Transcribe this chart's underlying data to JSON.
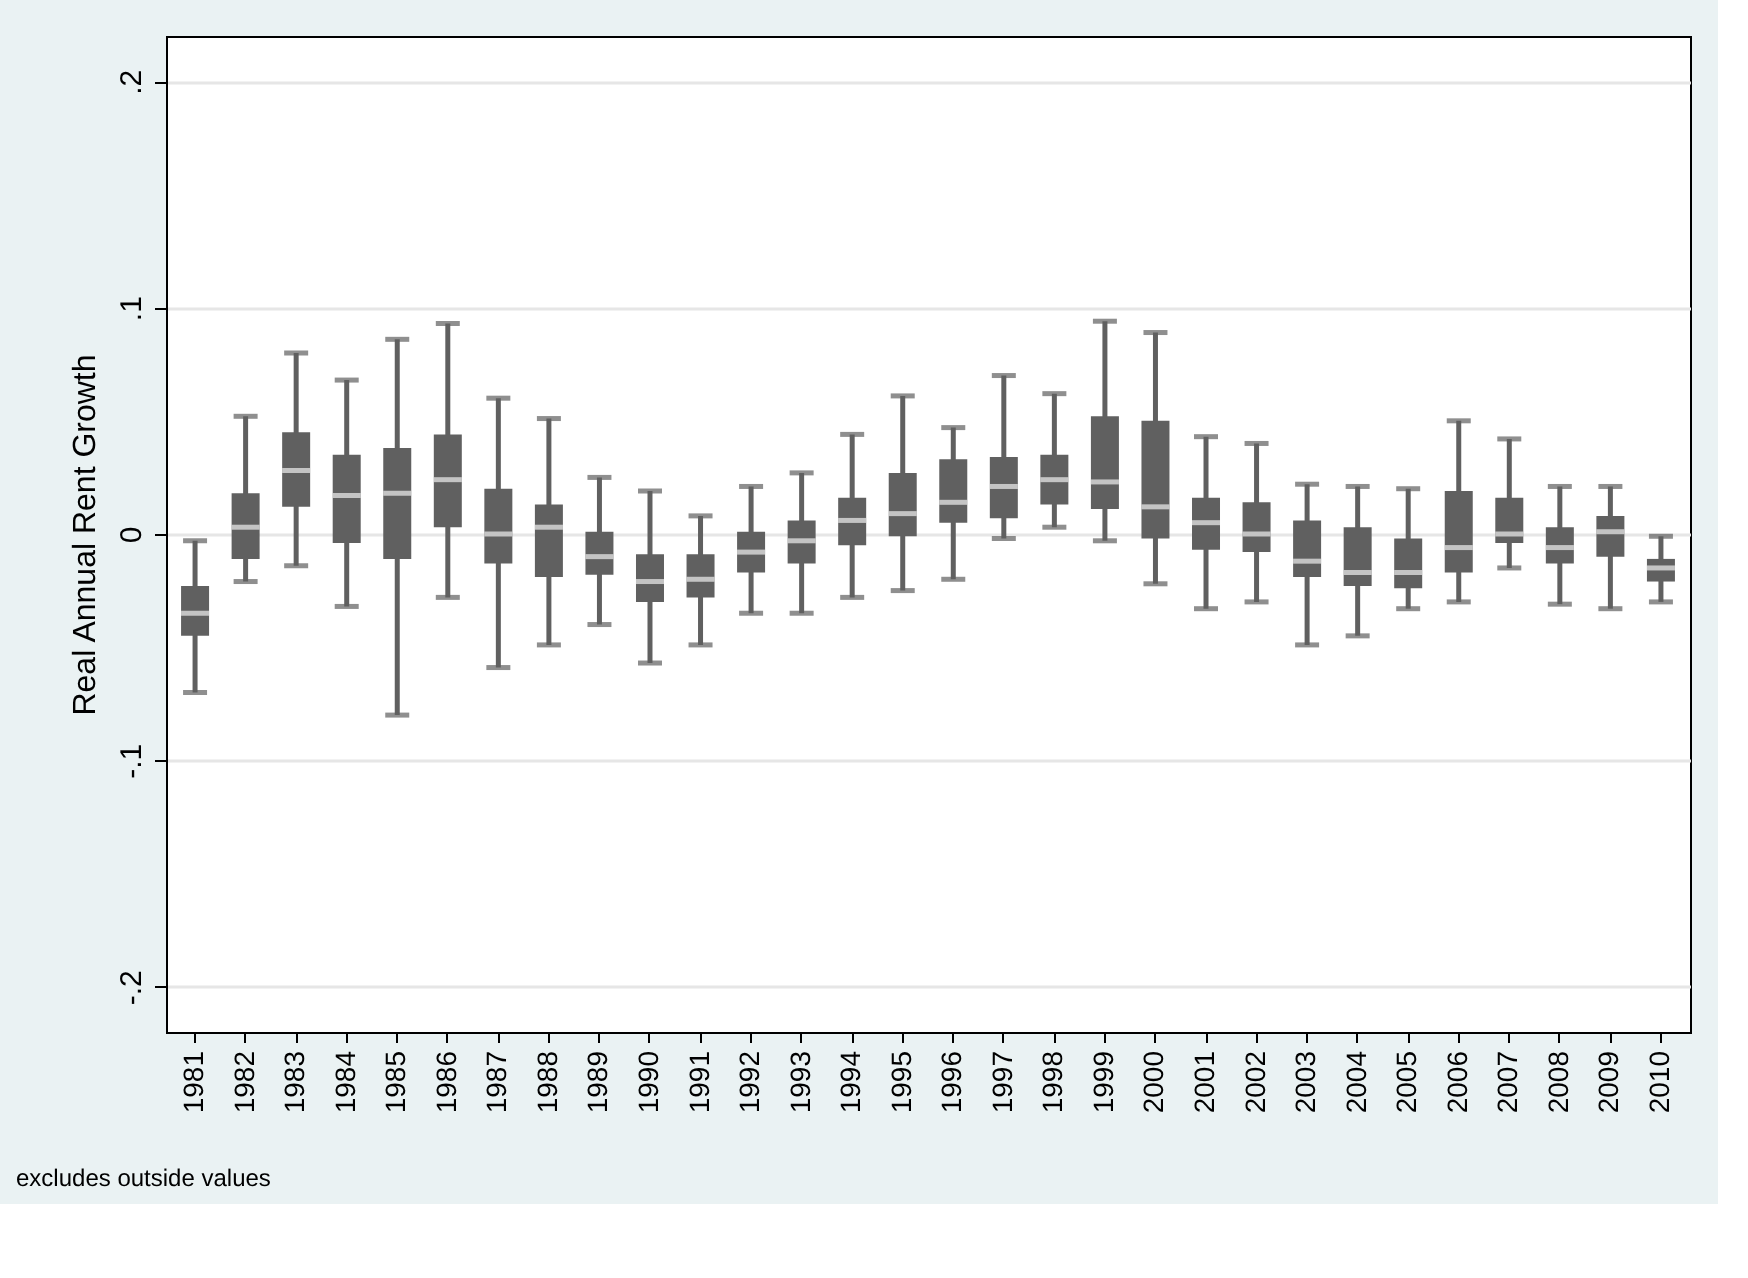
{
  "chart_data": {
    "type": "box",
    "ylabel": "Real Annual Rent Growth",
    "annotations": [
      "excludes outside values"
    ],
    "categories": [
      "1981",
      "1982",
      "1983",
      "1984",
      "1985",
      "1986",
      "1987",
      "1988",
      "1989",
      "1990",
      "1991",
      "1992",
      "1993",
      "1994",
      "1995",
      "1996",
      "1997",
      "1998",
      "1999",
      "2000",
      "2001",
      "2002",
      "2003",
      "2004",
      "2005",
      "2006",
      "2007",
      "2008",
      "2009",
      "2010"
    ],
    "color": "#606060",
    "boxes": [
      {
        "low": -0.07,
        "q1": -0.045,
        "median": -0.035,
        "q3": -0.023,
        "high": -0.003
      },
      {
        "low": -0.021,
        "q1": -0.011,
        "median": 0.003,
        "q3": 0.018,
        "high": 0.052
      },
      {
        "low": -0.014,
        "q1": 0.012,
        "median": 0.028,
        "q3": 0.045,
        "high": 0.08
      },
      {
        "low": -0.032,
        "q1": -0.004,
        "median": 0.017,
        "q3": 0.035,
        "high": 0.068
      },
      {
        "low": -0.08,
        "q1": -0.011,
        "median": 0.018,
        "q3": 0.038,
        "high": 0.086
      },
      {
        "low": -0.028,
        "q1": 0.003,
        "median": 0.024,
        "q3": 0.044,
        "high": 0.093
      },
      {
        "low": -0.059,
        "q1": -0.013,
        "median": 0.0,
        "q3": 0.02,
        "high": 0.06
      },
      {
        "low": -0.049,
        "q1": -0.019,
        "median": 0.003,
        "q3": 0.013,
        "high": 0.051
      },
      {
        "low": -0.04,
        "q1": -0.018,
        "median": -0.01,
        "q3": 0.001,
        "high": 0.025
      },
      {
        "low": -0.057,
        "q1": -0.03,
        "median": -0.021,
        "q3": -0.009,
        "high": 0.019
      },
      {
        "low": -0.049,
        "q1": -0.028,
        "median": -0.02,
        "q3": -0.009,
        "high": 0.008
      },
      {
        "low": -0.035,
        "q1": -0.017,
        "median": -0.008,
        "q3": 0.001,
        "high": 0.021
      },
      {
        "low": -0.035,
        "q1": -0.013,
        "median": -0.003,
        "q3": 0.006,
        "high": 0.027
      },
      {
        "low": -0.028,
        "q1": -0.005,
        "median": 0.006,
        "q3": 0.016,
        "high": 0.044
      },
      {
        "low": -0.025,
        "q1": -0.001,
        "median": 0.009,
        "q3": 0.027,
        "high": 0.061
      },
      {
        "low": -0.02,
        "q1": 0.005,
        "median": 0.014,
        "q3": 0.033,
        "high": 0.047
      },
      {
        "low": -0.002,
        "q1": 0.007,
        "median": 0.021,
        "q3": 0.034,
        "high": 0.07
      },
      {
        "low": 0.003,
        "q1": 0.013,
        "median": 0.024,
        "q3": 0.035,
        "high": 0.062
      },
      {
        "low": -0.003,
        "q1": 0.011,
        "median": 0.023,
        "q3": 0.052,
        "high": 0.094
      },
      {
        "low": -0.022,
        "q1": -0.002,
        "median": 0.012,
        "q3": 0.05,
        "high": 0.089
      },
      {
        "low": -0.033,
        "q1": -0.007,
        "median": 0.005,
        "q3": 0.016,
        "high": 0.043
      },
      {
        "low": -0.03,
        "q1": -0.008,
        "median": 0.0,
        "q3": 0.014,
        "high": 0.04
      },
      {
        "low": -0.049,
        "q1": -0.019,
        "median": -0.012,
        "q3": 0.006,
        "high": 0.022
      },
      {
        "low": -0.045,
        "q1": -0.023,
        "median": -0.017,
        "q3": 0.003,
        "high": 0.021
      },
      {
        "low": -0.033,
        "q1": -0.024,
        "median": -0.017,
        "q3": -0.002,
        "high": 0.02
      },
      {
        "low": -0.03,
        "q1": -0.017,
        "median": -0.006,
        "q3": 0.019,
        "high": 0.05
      },
      {
        "low": -0.015,
        "q1": -0.004,
        "median": 0.0,
        "q3": 0.016,
        "high": 0.042
      },
      {
        "low": -0.031,
        "q1": -0.013,
        "median": -0.006,
        "q3": 0.003,
        "high": 0.021
      },
      {
        "low": -0.033,
        "q1": -0.01,
        "median": 0.001,
        "q3": 0.008,
        "high": 0.021
      },
      {
        "low": -0.03,
        "q1": -0.021,
        "median": -0.015,
        "q3": -0.011,
        "high": -0.001
      }
    ],
    "ylim": [
      -0.22,
      0.22
    ],
    "yticks": [
      {
        "value": -0.2,
        "label": "-.2"
      },
      {
        "value": -0.1,
        "label": "-.1"
      },
      0,
      {
        "value": 0.1,
        "label": ".1"
      },
      {
        "value": 0.2,
        "label": ".2"
      }
    ],
    "grid": "y"
  }
}
